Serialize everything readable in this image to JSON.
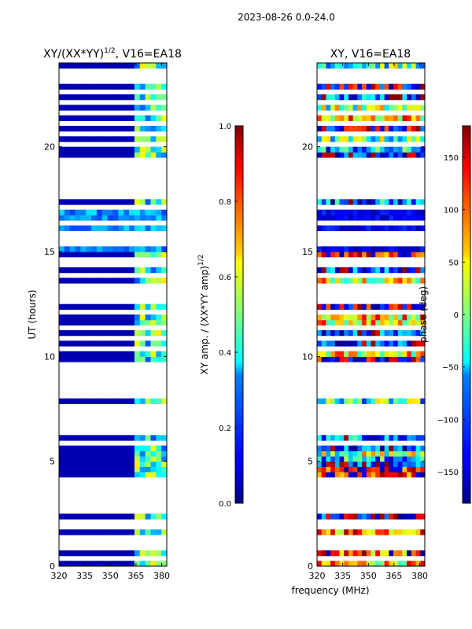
{
  "figure": {
    "suptitle": "2023-08-26 0.0-24.0",
    "xlabel": "frequency (MHz)",
    "colormap": "jet"
  },
  "chart_data": [
    {
      "type": "heatmap",
      "title_main": "XY/(XX*YY)",
      "title_sup": "1/2",
      "title_tail": ", V16=EA18",
      "xlabel": "frequency (MHz)",
      "ylabel": "UT (hours)",
      "xlim": [
        320,
        383
      ],
      "ylim": [
        0,
        24
      ],
      "xticks": [
        320,
        335,
        350,
        365,
        380
      ],
      "yticks": [
        0,
        5,
        10,
        15,
        20
      ],
      "colorbar": {
        "label_main": "XY amp. / (XX*YY amp)",
        "label_sup": "1/2",
        "range": [
          0.0,
          1.0
        ],
        "ticks": [
          "0.0",
          "0.2",
          "0.4",
          "0.6",
          "0.8",
          "1.0"
        ],
        "tick_values": [
          0.0,
          0.2,
          0.4,
          0.6,
          0.8,
          1.0
        ]
      },
      "typical_low_band_value": 0.05,
      "rfi_band_mhz": [
        361,
        383
      ],
      "anomaly_hours": [
        14.8,
        17.0
      ],
      "anomaly_value": 0.3
    },
    {
      "type": "heatmap",
      "title": "XY, V16=EA18",
      "xlabel": "frequency (MHz)",
      "xlim": [
        320,
        383
      ],
      "ylim": [
        0,
        24
      ],
      "xticks": [
        320,
        335,
        350,
        365,
        380
      ],
      "yticks": [
        0,
        5,
        10,
        15,
        20
      ],
      "colorbar": {
        "label": "phase (deg)",
        "range": [
          -180,
          180
        ],
        "ticks": [
          "−150",
          "−100",
          "−50",
          "0",
          "50",
          "100",
          "150"
        ],
        "tick_values": [
          -150,
          -100,
          -50,
          0,
          50,
          100,
          150
        ]
      },
      "anomaly_hours": [
        14.8,
        17.0
      ],
      "anomaly_phase_deg": -140
    }
  ],
  "gap_hours": [
    0.4,
    0.9,
    1.1,
    1.3,
    1.8,
    2.0,
    2.6,
    2.8,
    3.1,
    3.3,
    3.55,
    3.75,
    4.0,
    5.8,
    6.3,
    6.5,
    6.9,
    7.1,
    7.4,
    7.7,
    8.1,
    8.3,
    8.6,
    8.8,
    9.0,
    9.5,
    10.4,
    10.9,
    11.3,
    12.2,
    12.6,
    13.0,
    13.4,
    13.9,
    14.3,
    14.6,
    15.3,
    15.7,
    15.9,
    16.3,
    17.2,
    17.6,
    17.8,
    18.1,
    18.3,
    18.6,
    18.8,
    19.0,
    19.4,
    20.2,
    20.6,
    21.2,
    21.6,
    22.1,
    22.6,
    23.1,
    23.5
  ]
}
